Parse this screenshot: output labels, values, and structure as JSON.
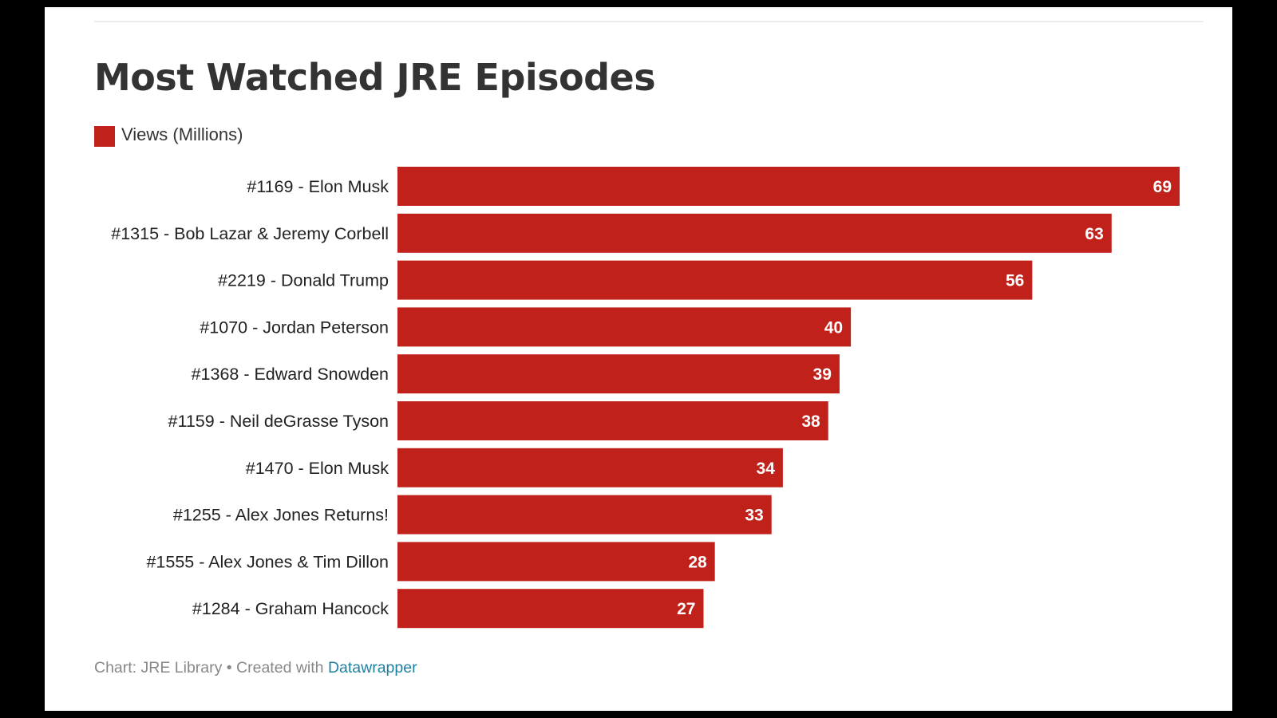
{
  "chart_data": {
    "type": "bar",
    "orientation": "horizontal",
    "title": "Most Watched JRE Episodes",
    "legend": [
      {
        "label": "Views (Millions)",
        "color": "#c0211a"
      }
    ],
    "legend_position": "top-left",
    "categories": [
      "#1169 - Elon Musk",
      "#1315 - Bob Lazar & Jeremy Corbell",
      "#2219 - Donald Trump",
      "#1070 - Jordan Peterson",
      "#1368 - Edward Snowden",
      "#1159 - Neil deGrasse Tyson",
      "#1470 - Elon Musk",
      "#1255 - Alex Jones Returns!",
      "#1555 - Alex Jones & Tim Dillon",
      "#1284 - Graham Hancock"
    ],
    "values": [
      69,
      63,
      56,
      40,
      39,
      38,
      34,
      33,
      28,
      27
    ],
    "xlim": [
      0,
      69
    ],
    "grid": false,
    "bar_color": "#c0211a",
    "value_label_color": "#ffffff"
  },
  "footer": {
    "source_text": "Chart: JRE Library • Created with ",
    "link_text": "Datawrapper"
  }
}
